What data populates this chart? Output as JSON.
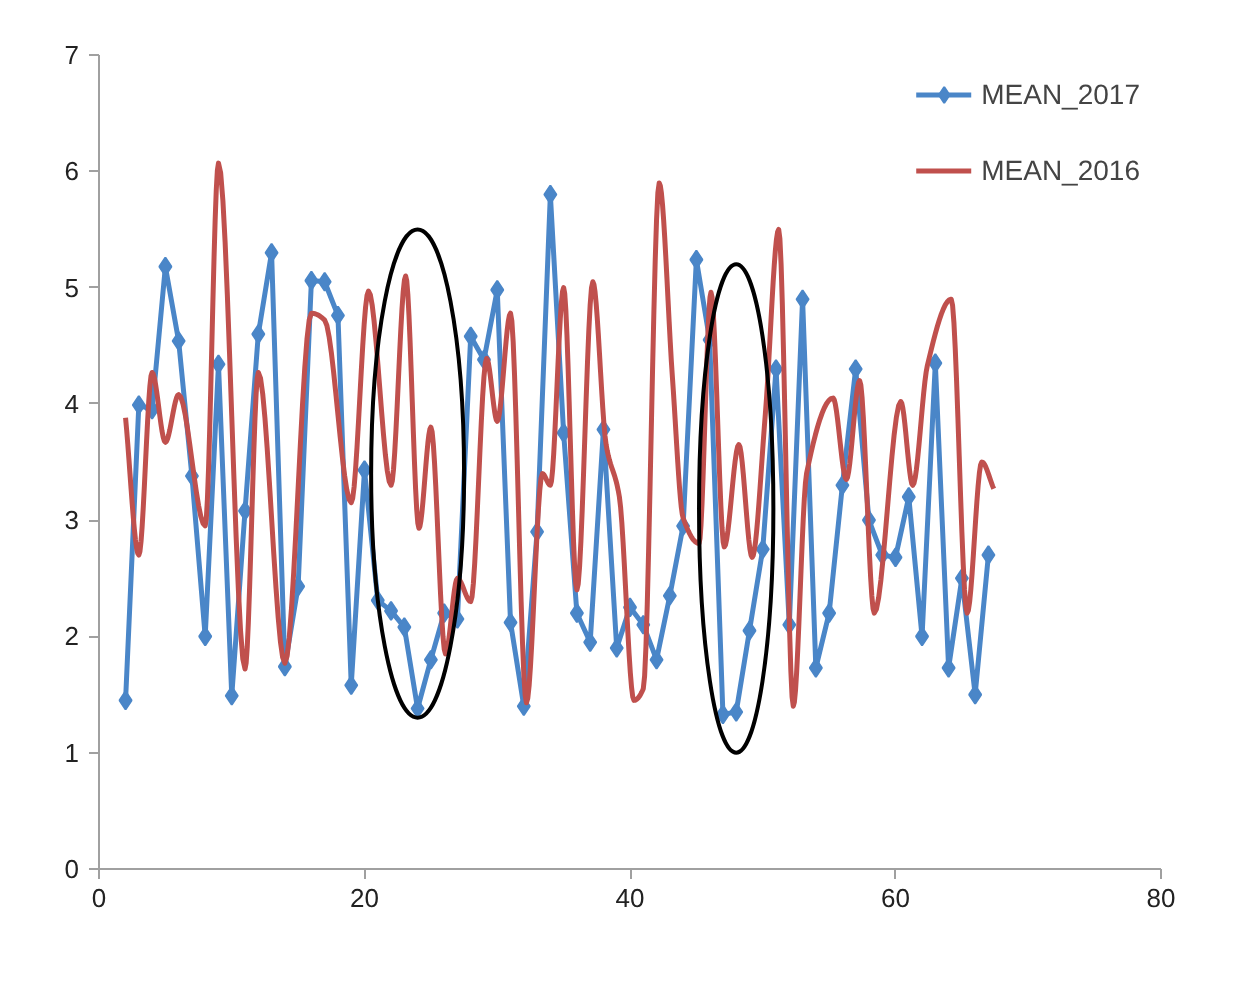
{
  "chart_data": {
    "type": "line",
    "xlim": [
      0,
      80
    ],
    "xticks": [
      0,
      20,
      40,
      60,
      80
    ],
    "ylim": [
      0,
      7
    ],
    "yticks": [
      0,
      1,
      2,
      3,
      4,
      5,
      6,
      7
    ],
    "grid": false,
    "legend": "top right",
    "line_style": "solid",
    "series": [
      {
        "name": "MEAN_2017",
        "color": "#4a86c8",
        "marker": "diamond",
        "x": [
          2,
          3,
          4,
          5,
          6,
          7,
          8,
          9,
          10,
          11,
          12,
          13,
          14,
          15,
          16,
          17,
          18,
          19,
          20,
          21,
          22,
          23,
          24,
          25,
          26,
          27,
          28,
          29,
          30,
          31,
          32,
          33,
          34,
          35,
          36,
          37,
          38,
          39,
          40,
          41,
          42,
          43,
          44,
          45,
          46,
          47,
          48,
          49,
          50,
          51,
          52,
          53,
          54,
          55,
          56,
          57,
          58,
          59,
          60,
          61,
          62,
          63,
          64,
          65,
          66,
          67
        ],
        "values": [
          1.45,
          3.99,
          3.95,
          5.18,
          4.54,
          3.38,
          2.0,
          4.34,
          1.49,
          3.08,
          4.6,
          5.3,
          1.74,
          2.43,
          5.06,
          5.05,
          4.76,
          1.58,
          3.43,
          2.31,
          2.22,
          2.08,
          1.38,
          1.8,
          2.2,
          2.15,
          4.58,
          4.38,
          4.98,
          2.12,
          1.4,
          2.9,
          5.8,
          3.75,
          2.2,
          1.95,
          3.78,
          1.9,
          2.25,
          2.1,
          1.8,
          2.35,
          2.95,
          5.24,
          4.55,
          1.33,
          1.35,
          2.05,
          2.75,
          4.3,
          2.1,
          4.9,
          1.73,
          2.2,
          3.3,
          4.3,
          3.0,
          2.7,
          2.68,
          3.2,
          2.0,
          4.35,
          1.73,
          2.5,
          1.5,
          2.7
        ]
      },
      {
        "name": "MEAN_2016",
        "color": "#c0504d",
        "marker": "none",
        "x": [
          2,
          3,
          4,
          5,
          6,
          8,
          9,
          11,
          12,
          14,
          16,
          17,
          19,
          20.3,
          22,
          23.1,
          24.1,
          25,
          26.1,
          27,
          28,
          29.2,
          30,
          31,
          32.2,
          33.4,
          34,
          35,
          36,
          37.2,
          38.2,
          39.2,
          40.3,
          41,
          42.2,
          43.2,
          44,
          45.2,
          46.1,
          47.1,
          48.2,
          49.2,
          50.2,
          51.2,
          52.3,
          53.3,
          55.3,
          56.3,
          57.3,
          58.4,
          60.4,
          61.3,
          62.4,
          64.2,
          65.4,
          66.5,
          67.4
        ],
        "values": [
          3.88,
          2.7,
          4.27,
          3.67,
          4.08,
          2.95,
          6.07,
          1.72,
          4.27,
          1.77,
          4.78,
          4.72,
          3.15,
          4.97,
          3.3,
          5.1,
          2.93,
          3.8,
          1.85,
          2.5,
          2.3,
          4.39,
          3.85,
          4.78,
          1.43,
          3.4,
          3.3,
          5.0,
          2.4,
          5.05,
          3.65,
          3.2,
          1.45,
          1.55,
          5.9,
          4.22,
          3.02,
          2.8,
          4.96,
          2.77,
          3.65,
          2.68,
          3.92,
          5.5,
          1.4,
          3.4,
          4.05,
          3.35,
          4.2,
          2.2,
          4.02,
          3.3,
          4.33,
          4.9,
          2.2,
          3.5,
          3.27
        ]
      }
    ]
  }
}
